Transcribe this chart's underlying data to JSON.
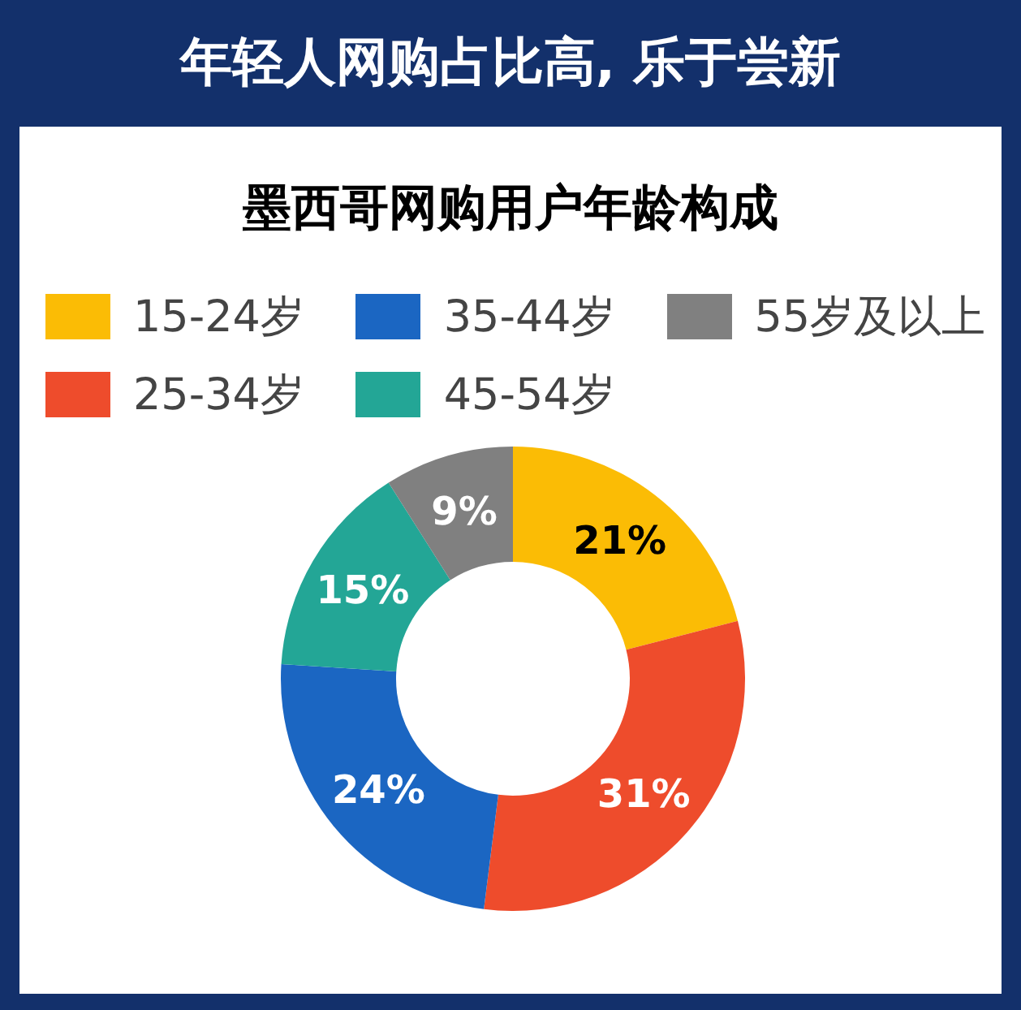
{
  "chart_data": {
    "type": "donut",
    "title": "年轻人网购占比高, 乐于尝新",
    "subtitle": "墨西哥网购用户年龄构成",
    "categories": [
      "15-24岁",
      "25-34岁",
      "35-44岁",
      "45-54岁",
      "55岁及以上"
    ],
    "values": [
      21,
      31,
      24,
      15,
      9
    ],
    "colors": [
      "#fbbc05",
      "#ee4c2c",
      "#1b66c2",
      "#23a696",
      "#808080"
    ],
    "value_labels": [
      "21%",
      "31%",
      "24%",
      "15%",
      "9%"
    ],
    "legend": "top"
  }
}
